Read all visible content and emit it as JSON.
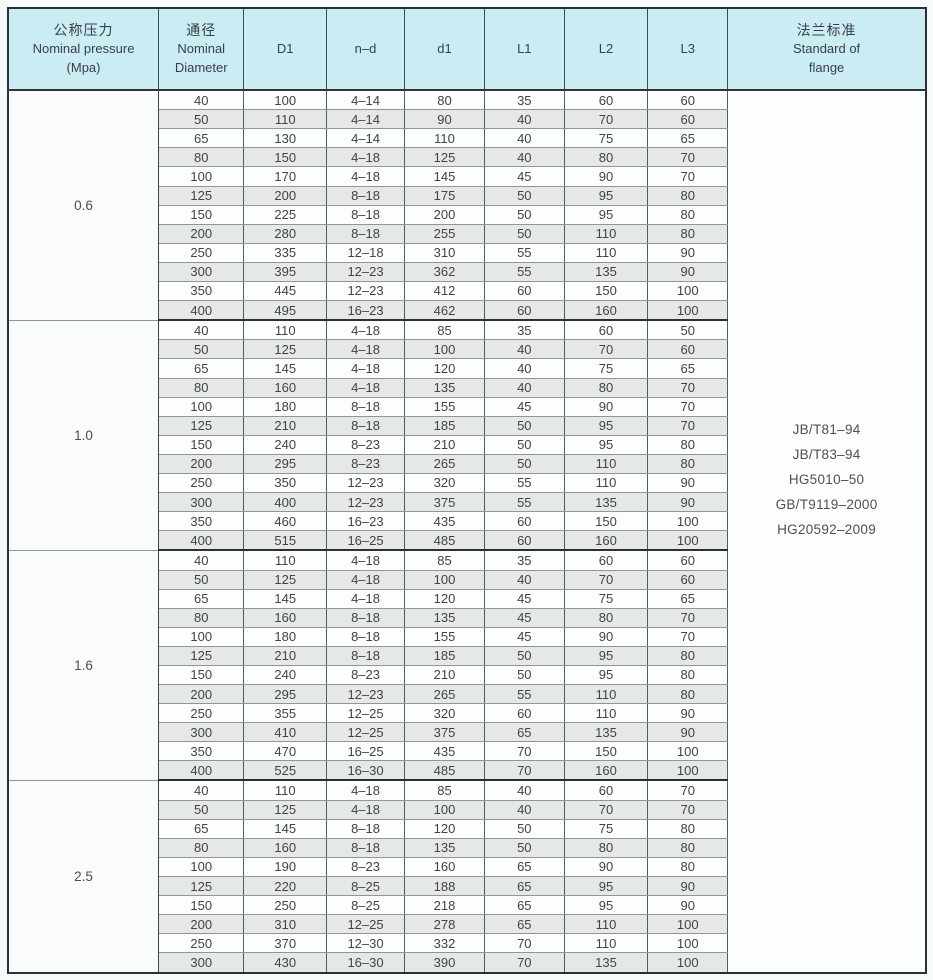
{
  "header": {
    "pressure": [
      "公称压力",
      "Nominal pressure",
      "(Mpa)"
    ],
    "diameter": [
      "通径",
      "Nominal",
      "Diameter"
    ],
    "d1": "D1",
    "nd": "n–d",
    "small_d1": "d1",
    "l1": "L1",
    "l2": "L2",
    "l3": "L3",
    "standard": [
      "法兰标准",
      "Standard of",
      "flange"
    ]
  },
  "standards": [
    "JB/T81–94",
    "JB/T83–94",
    "HG5010–50",
    "GB/T9119–2000",
    "HG20592–2009"
  ],
  "groups": [
    {
      "pressure": "0.6",
      "rows": [
        [
          "40",
          "100",
          "4–14",
          "80",
          "35",
          "60",
          "60"
        ],
        [
          "50",
          "110",
          "4–14",
          "90",
          "40",
          "70",
          "60"
        ],
        [
          "65",
          "130",
          "4–14",
          "110",
          "40",
          "75",
          "65"
        ],
        [
          "80",
          "150",
          "4–18",
          "125",
          "40",
          "80",
          "70"
        ],
        [
          "100",
          "170",
          "4–18",
          "145",
          "45",
          "90",
          "70"
        ],
        [
          "125",
          "200",
          "8–18",
          "175",
          "50",
          "95",
          "80"
        ],
        [
          "150",
          "225",
          "8–18",
          "200",
          "50",
          "95",
          "80"
        ],
        [
          "200",
          "280",
          "8–18",
          "255",
          "50",
          "110",
          "80"
        ],
        [
          "250",
          "335",
          "12–18",
          "310",
          "55",
          "110",
          "90"
        ],
        [
          "300",
          "395",
          "12–23",
          "362",
          "55",
          "135",
          "90"
        ],
        [
          "350",
          "445",
          "12–23",
          "412",
          "60",
          "150",
          "100"
        ],
        [
          "400",
          "495",
          "16–23",
          "462",
          "60",
          "160",
          "100"
        ]
      ]
    },
    {
      "pressure": "1.0",
      "rows": [
        [
          "40",
          "110",
          "4–18",
          "85",
          "35",
          "60",
          "50"
        ],
        [
          "50",
          "125",
          "4–18",
          "100",
          "40",
          "70",
          "60"
        ],
        [
          "65",
          "145",
          "4–18",
          "120",
          "40",
          "75",
          "65"
        ],
        [
          "80",
          "160",
          "4–18",
          "135",
          "40",
          "80",
          "70"
        ],
        [
          "100",
          "180",
          "8–18",
          "155",
          "45",
          "90",
          "70"
        ],
        [
          "125",
          "210",
          "8–18",
          "185",
          "50",
          "95",
          "70"
        ],
        [
          "150",
          "240",
          "8–23",
          "210",
          "50",
          "95",
          "80"
        ],
        [
          "200",
          "295",
          "8–23",
          "265",
          "50",
          "110",
          "80"
        ],
        [
          "250",
          "350",
          "12–23",
          "320",
          "55",
          "110",
          "90"
        ],
        [
          "300",
          "400",
          "12–23",
          "375",
          "55",
          "135",
          "90"
        ],
        [
          "350",
          "460",
          "16–23",
          "435",
          "60",
          "150",
          "100"
        ],
        [
          "400",
          "515",
          "16–25",
          "485",
          "60",
          "160",
          "100"
        ]
      ]
    },
    {
      "pressure": "1.6",
      "rows": [
        [
          "40",
          "110",
          "4–18",
          "85",
          "35",
          "60",
          "60"
        ],
        [
          "50",
          "125",
          "4–18",
          "100",
          "40",
          "70",
          "60"
        ],
        [
          "65",
          "145",
          "4–18",
          "120",
          "45",
          "75",
          "65"
        ],
        [
          "80",
          "160",
          "8–18",
          "135",
          "45",
          "80",
          "70"
        ],
        [
          "100",
          "180",
          "8–18",
          "155",
          "45",
          "90",
          "70"
        ],
        [
          "125",
          "210",
          "8–18",
          "185",
          "50",
          "95",
          "80"
        ],
        [
          "150",
          "240",
          "8–23",
          "210",
          "50",
          "95",
          "80"
        ],
        [
          "200",
          "295",
          "12–23",
          "265",
          "55",
          "110",
          "80"
        ],
        [
          "250",
          "355",
          "12–25",
          "320",
          "60",
          "110",
          "90"
        ],
        [
          "300",
          "410",
          "12–25",
          "375",
          "65",
          "135",
          "90"
        ],
        [
          "350",
          "470",
          "16–25",
          "435",
          "70",
          "150",
          "100"
        ],
        [
          "400",
          "525",
          "16–30",
          "485",
          "70",
          "160",
          "100"
        ]
      ]
    },
    {
      "pressure": "2.5",
      "rows": [
        [
          "40",
          "110",
          "4–18",
          "85",
          "40",
          "60",
          "70"
        ],
        [
          "50",
          "125",
          "4–18",
          "100",
          "40",
          "70",
          "70"
        ],
        [
          "65",
          "145",
          "8–18",
          "120",
          "50",
          "75",
          "80"
        ],
        [
          "80",
          "160",
          "8–18",
          "135",
          "50",
          "80",
          "80"
        ],
        [
          "100",
          "190",
          "8–23",
          "160",
          "65",
          "90",
          "80"
        ],
        [
          "125",
          "220",
          "8–25",
          "188",
          "65",
          "95",
          "90"
        ],
        [
          "150",
          "250",
          "8–25",
          "218",
          "65",
          "95",
          "90"
        ],
        [
          "200",
          "310",
          "12–25",
          "278",
          "65",
          "110",
          "100"
        ],
        [
          "250",
          "370",
          "12–30",
          "332",
          "70",
          "110",
          "100"
        ],
        [
          "300",
          "430",
          "16–30",
          "390",
          "70",
          "135",
          "100"
        ]
      ]
    }
  ],
  "colors": {
    "header_bg": "#cbecf2",
    "shaded_row_bg": "#e6e8e8",
    "table_bg": "#fcfdfd",
    "border_dark": "#2a3033",
    "text": "#3e4448"
  }
}
